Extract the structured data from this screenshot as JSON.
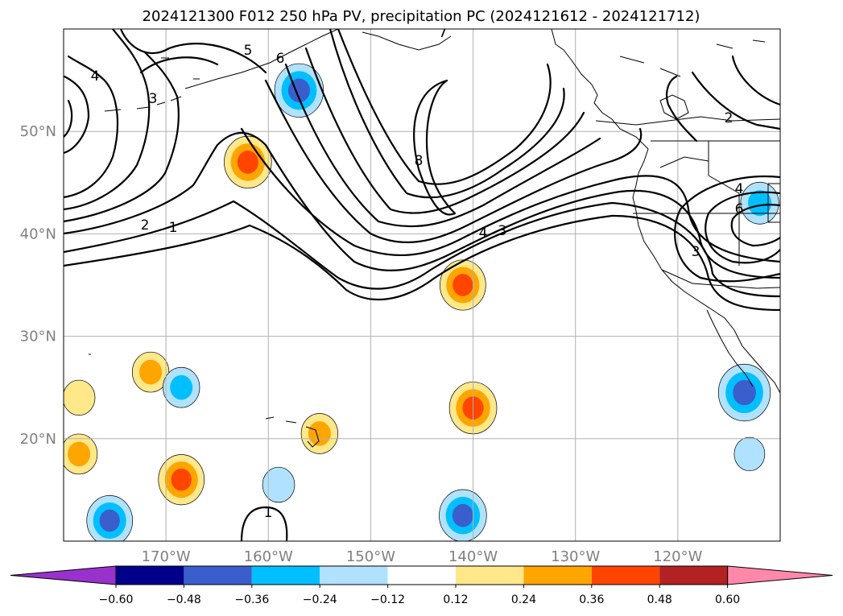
{
  "chart_data": {
    "type": "heatmap",
    "title": "2024121300 F012 250 hPa PV, precipitation PC (2024121612 - 2024121712)",
    "x_ticks": [
      "170°W",
      "160°W",
      "150°W",
      "140°W",
      "130°W",
      "120°W"
    ],
    "y_ticks": [
      "50°N",
      "40°N",
      "30°N",
      "20°N"
    ],
    "lon_range": [
      -180,
      -110
    ],
    "lat_range": [
      10,
      60
    ],
    "grid": true,
    "colorbar": {
      "ticks": [
        "−0.60",
        "−0.48",
        "−0.36",
        "−0.24",
        "−0.12",
        "0.12",
        "0.24",
        "0.36",
        "0.48",
        "0.60"
      ],
      "levels": [
        -0.6,
        -0.48,
        -0.36,
        -0.24,
        -0.12,
        0.12,
        0.24,
        0.36,
        0.48,
        0.6
      ],
      "colors": [
        "#9932cc",
        "#00008b",
        "#3a5fcd",
        "#00bfff",
        "#b0e2ff",
        "#ffffff",
        "#ffe88a",
        "#ffa500",
        "#ff4500",
        "#b22222",
        "#ff88aa"
      ],
      "extend": "both"
    },
    "pv_contour_labels": [
      "1",
      "2",
      "3",
      "4",
      "5",
      "6",
      "7",
      "8",
      "4",
      "3",
      "4",
      "6",
      "3",
      "2",
      "1"
    ],
    "precip_anomalies": [
      {
        "lon": -162,
        "lat": 47,
        "value": 0.4
      },
      {
        "lon": -141,
        "lat": 35,
        "value": 0.38
      },
      {
        "lon": -140,
        "lat": 23,
        "value": 0.4
      },
      {
        "lon": -168.5,
        "lat": 16,
        "value": 0.38
      },
      {
        "lon": -178.5,
        "lat": 18.5,
        "value": 0.26
      },
      {
        "lon": -171.5,
        "lat": 26.5,
        "value": 0.26
      },
      {
        "lon": -155,
        "lat": 20.5,
        "value": 0.26
      },
      {
        "lon": -178.5,
        "lat": 24,
        "value": 0.2
      },
      {
        "lon": -157,
        "lat": 54,
        "value": -0.42
      },
      {
        "lon": -141,
        "lat": 12.5,
        "value": -0.4
      },
      {
        "lon": -113.5,
        "lat": 24.5,
        "value": -0.46
      },
      {
        "lon": -175.5,
        "lat": 12,
        "value": -0.38
      },
      {
        "lon": -168.5,
        "lat": 25,
        "value": -0.26
      },
      {
        "lon": -112,
        "lat": 43,
        "value": -0.28
      },
      {
        "lon": -159,
        "lat": 15.5,
        "value": -0.2
      },
      {
        "lon": -113,
        "lat": 18.5,
        "value": -0.18
      }
    ]
  }
}
